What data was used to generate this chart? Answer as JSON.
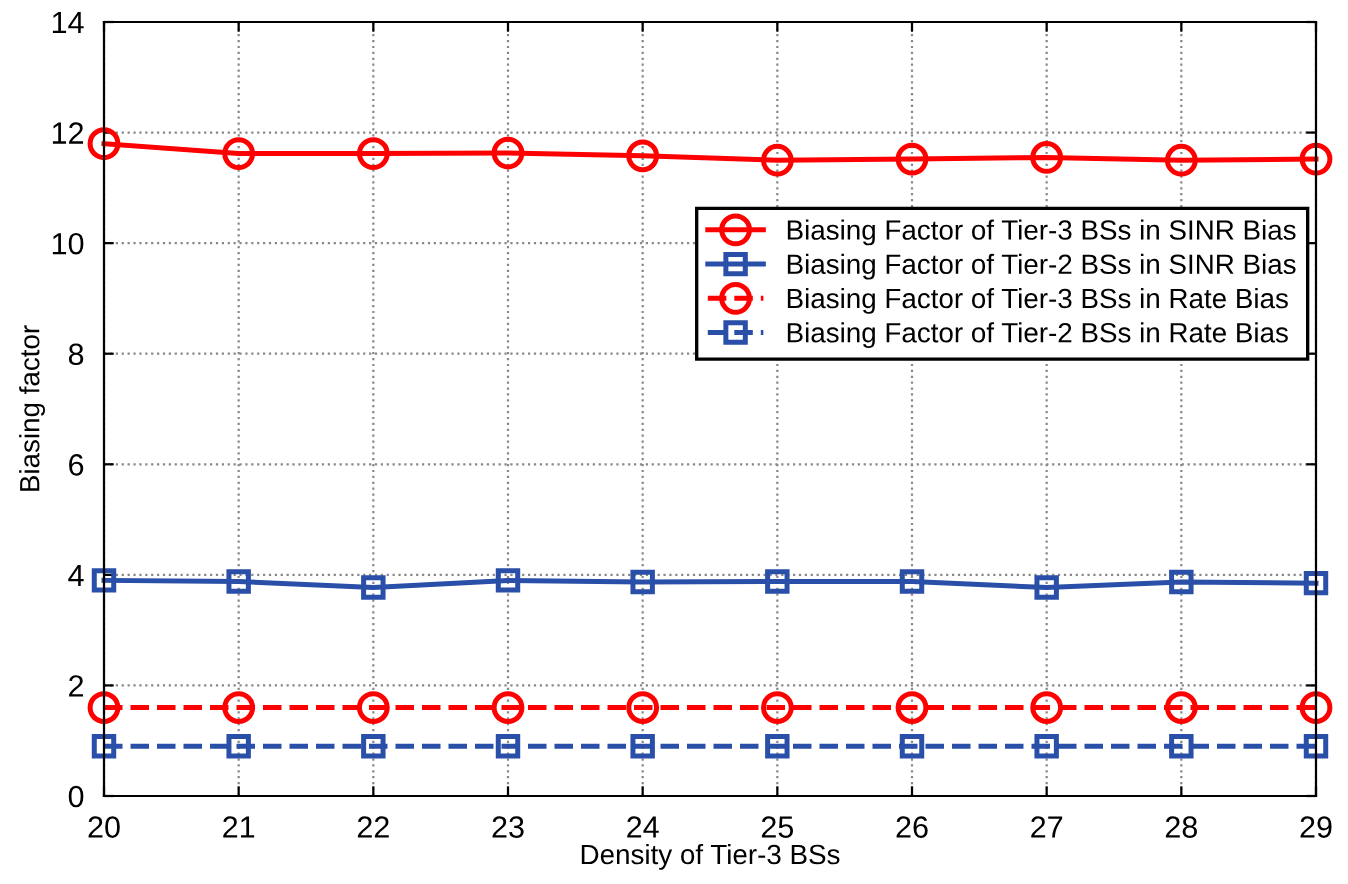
{
  "chart_data": {
    "type": "line",
    "xlabel": "Density of Tier-3 BSs",
    "ylabel": "Biasing factor",
    "x": [
      20,
      21,
      22,
      23,
      24,
      25,
      26,
      27,
      28,
      29
    ],
    "xlim": [
      20,
      29
    ],
    "xticks": [
      20,
      21,
      22,
      23,
      24,
      25,
      26,
      27,
      28,
      29
    ],
    "ylim": [
      0,
      14
    ],
    "yticks": [
      0,
      2,
      4,
      6,
      8,
      10,
      12,
      14
    ],
    "grid": true,
    "legend": "right",
    "series": [
      {
        "name": "Biasing Factor of Tier-3 BSs in SINR Bias",
        "color": "#ff0000",
        "marker": "circle",
        "line_style": "solid",
        "values": [
          11.8,
          11.62,
          11.62,
          11.63,
          11.58,
          11.5,
          11.52,
          11.55,
          11.5,
          11.52
        ]
      },
      {
        "name": "Biasing Factor of Tier-2 BSs in SINR Bias",
        "color": "#2a4fa8",
        "marker": "square",
        "line_style": "solid",
        "values": [
          3.9,
          3.88,
          3.77,
          3.9,
          3.87,
          3.88,
          3.88,
          3.77,
          3.87,
          3.85
        ]
      },
      {
        "name": "Biasing Factor of Tier-3 BSs in Rate Bias",
        "color": "#ff0000",
        "marker": "circle",
        "line_style": "dashed",
        "values": [
          1.6,
          1.6,
          1.6,
          1.6,
          1.6,
          1.6,
          1.6,
          1.6,
          1.6,
          1.6
        ]
      },
      {
        "name": "Biasing Factor of Tier-2 BSs in Rate Bias",
        "color": "#2a4fa8",
        "marker": "square",
        "line_style": "dashed",
        "values": [
          0.9,
          0.9,
          0.9,
          0.9,
          0.9,
          0.9,
          0.9,
          0.9,
          0.9,
          0.9
        ]
      }
    ]
  }
}
